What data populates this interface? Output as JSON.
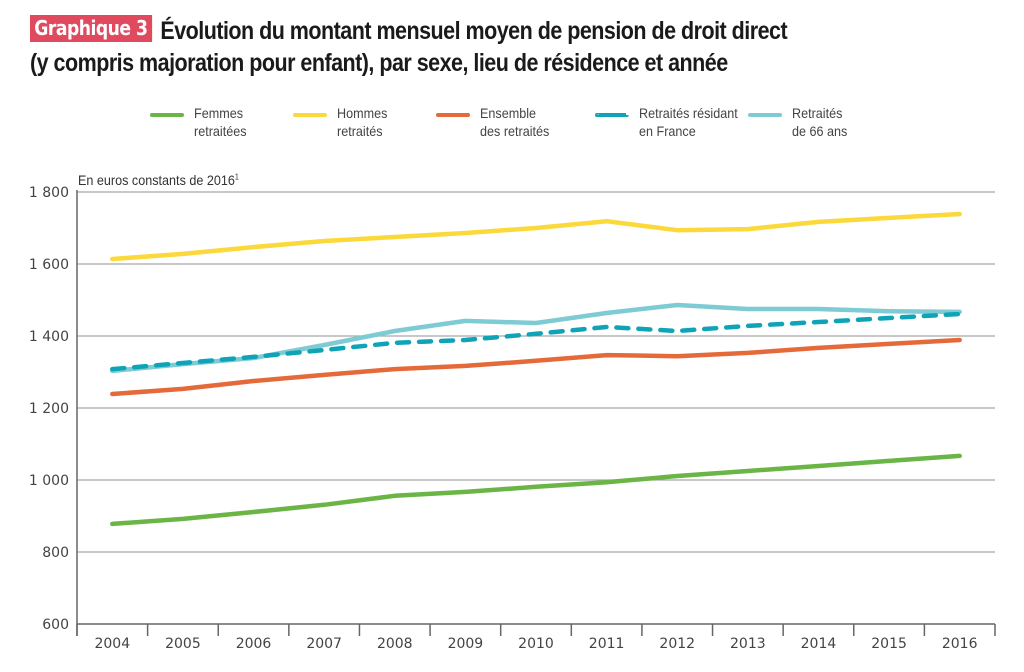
{
  "header": {
    "tag": "Graphique 3",
    "title_line1": "Évolution du montant mensuel moyen de pension de droit direct",
    "title_line2": "(y compris majoration pour enfant), par sexe, lieu de résidence et année"
  },
  "unit_label": "En euros constants de 2016",
  "unit_footnote": "1",
  "chart_data": {
    "type": "line",
    "title": "Évolution du montant mensuel moyen de pension de droit direct (y compris majoration pour enfant), par sexe, lieu de résidence et année",
    "xlabel": "",
    "ylabel": "En euros constants de 2016",
    "categories": [
      "2004",
      "2005",
      "2006",
      "2007",
      "2008",
      "2009",
      "2010",
      "2011",
      "2012",
      "2013",
      "2014",
      "2015",
      "2016"
    ],
    "ylim": [
      600,
      1800
    ],
    "yticks": [
      600,
      800,
      1000,
      1200,
      1400,
      1600,
      1800
    ],
    "ytick_labels": [
      "600",
      "800",
      "1 000",
      "1 200",
      "1 400",
      "1 600",
      "1 800"
    ],
    "grid": true,
    "legend_position": "top",
    "series": [
      {
        "name": "Femmes retraitées",
        "label_lines": [
          "Femmes",
          "retraitées"
        ],
        "color": "#6ab546",
        "dashed": false,
        "values": [
          878,
          892,
          911,
          931,
          956,
          967,
          981,
          994,
          1011,
          1025,
          1039,
          1053,
          1067
        ]
      },
      {
        "name": "Hommes retraités",
        "label_lines": [
          "Hommes",
          "retraités"
        ],
        "color": "#fbd93a",
        "dashed": false,
        "values": [
          1614,
          1628,
          1647,
          1664,
          1675,
          1686,
          1700,
          1719,
          1694,
          1697,
          1717,
          1728,
          1739
        ]
      },
      {
        "name": "Ensemble des retraités",
        "label_lines": [
          "Ensemble",
          "des retraités"
        ],
        "color": "#e56a3a",
        "dashed": false,
        "values": [
          1239,
          1253,
          1275,
          1292,
          1308,
          1317,
          1331,
          1347,
          1344,
          1353,
          1367,
          1378,
          1389
        ]
      },
      {
        "name": "Retraités résidant en France",
        "label_lines": [
          "Retraités résidant",
          "en France"
        ],
        "color": "#0fa3b8",
        "dashed": true,
        "values": [
          1308,
          1325,
          1342,
          1361,
          1381,
          1389,
          1406,
          1425,
          1414,
          1428,
          1439,
          1450,
          1461
        ]
      },
      {
        "name": "Retraités de 66 ans",
        "label_lines": [
          "Retraités",
          "de 66 ans"
        ],
        "color": "#7ecbd3",
        "dashed": false,
        "values": [
          1303,
          1322,
          1339,
          1375,
          1414,
          1442,
          1436,
          1464,
          1486,
          1475,
          1475,
          1469,
          1467
        ]
      }
    ]
  }
}
